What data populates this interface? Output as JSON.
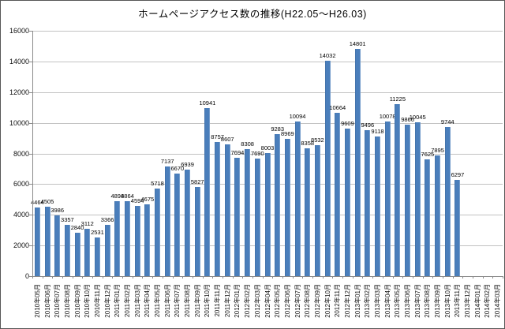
{
  "chart_data": {
    "type": "bar",
    "title": "ホームページアクセス数の推移(H22.05～H26.03)",
    "categories": [
      "2010年05月",
      "2010年06月",
      "2010年07月",
      "2010年08月",
      "2010年09月",
      "2010年10月",
      "2010年11月",
      "2010年12月",
      "2011年01月",
      "2011年02月",
      "2011年03月",
      "2011年04月",
      "2011年05月",
      "2011年06月",
      "2011年07月",
      "2011年08月",
      "2011年09月",
      "2011年10月",
      "2011年11月",
      "2011年12月",
      "2012年01月",
      "2012年02月",
      "2012年03月",
      "2012年04月",
      "2012年05月",
      "2012年06月",
      "2012年07月",
      "2012年08月",
      "2012年09月",
      "2012年10月",
      "2012年11月",
      "2012年12月",
      "2013年01月",
      "2013年02月",
      "2013年03月",
      "2013年04月",
      "2013年05月",
      "2013年06月",
      "2013年07月",
      "2013年08月",
      "2013年09月",
      "2013年10月",
      "2013年11月",
      "2013年12月",
      "2014年01月",
      "2014年02月",
      "2014年03月"
    ],
    "values": [
      4464,
      4505,
      3986,
      3357,
      2840,
      3112,
      2531,
      3366,
      4898,
      4864,
      4594,
      4675,
      5718,
      7137,
      6670,
      6939,
      5827,
      10941,
      8757,
      8607,
      7694,
      8308,
      7690,
      8003,
      9283,
      8969,
      10094,
      8358,
      8532,
      14032,
      10664,
      9609,
      14801,
      9496,
      9118,
      10078,
      11225,
      9866,
      10045,
      7625,
      7895,
      9744,
      6297,
      null,
      null,
      null,
      null
    ],
    "xlabel": "",
    "ylabel": "",
    "ylim": [
      0,
      16000
    ],
    "yticks": [
      0,
      2000,
      4000,
      6000,
      8000,
      10000,
      12000,
      14000,
      16000
    ],
    "grid": true,
    "legend": "none",
    "colors": {
      "bar": "#4a7ebb",
      "gridline": "#c2c2c2",
      "axis": "#8a8a8a",
      "text": "#000000",
      "background": "#ffffff",
      "frame_border": "#565656"
    }
  }
}
